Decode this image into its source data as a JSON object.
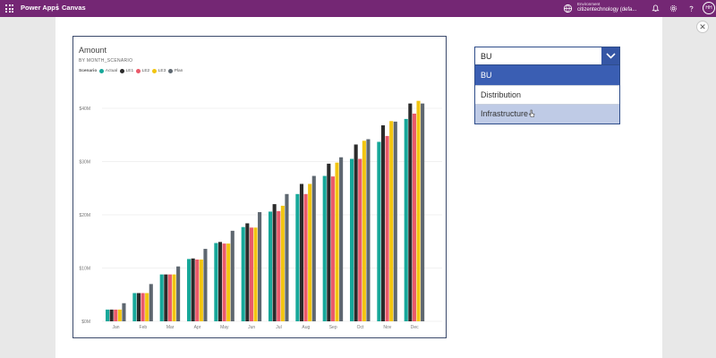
{
  "topbar": {
    "app_name": "Power Apps",
    "separator": "|",
    "mode": "Canvas",
    "environment_label": "Environment",
    "environment_value": "citizentechnology (defa...",
    "avatar_initials": "HH",
    "icons": [
      "waffle-icon",
      "environment-icon",
      "bell-icon",
      "settings-icon",
      "help-icon"
    ]
  },
  "chart_data": {
    "type": "bar",
    "title": "Amount",
    "subtitle": "BY MONTH_SCENARIO",
    "legend_title": "Scenario",
    "categories": [
      "Jan",
      "Feb",
      "Mar",
      "Apr",
      "May",
      "Jun",
      "Jul",
      "Aug",
      "Sep",
      "Oct",
      "Nov",
      "Dec"
    ],
    "series": [
      {
        "name": "Actual",
        "color": "#17a89a",
        "values": [
          2.2,
          5.3,
          8.8,
          11.7,
          14.7,
          17.7,
          20.6,
          23.9,
          27.3,
          30.5,
          33.7,
          38.0
        ]
      },
      {
        "name": "LE1",
        "color": "#2b2b2b",
        "values": [
          2.2,
          5.3,
          8.8,
          11.8,
          14.9,
          18.4,
          22.0,
          25.8,
          29.6,
          33.2,
          36.8,
          40.9
        ]
      },
      {
        "name": "LE2",
        "color": "#ea5a6a",
        "values": [
          2.2,
          5.3,
          8.8,
          11.6,
          14.6,
          17.6,
          20.7,
          23.9,
          27.2,
          30.5,
          34.8,
          39.0
        ]
      },
      {
        "name": "LE3",
        "color": "#f2c511",
        "values": [
          2.2,
          5.3,
          8.8,
          11.6,
          14.6,
          17.6,
          21.7,
          25.8,
          29.8,
          33.9,
          37.6,
          41.4
        ]
      },
      {
        "name": "Plan",
        "color": "#5e6770",
        "values": [
          3.4,
          7.0,
          10.3,
          13.6,
          17.0,
          20.5,
          23.9,
          27.3,
          30.8,
          34.2,
          37.5,
          40.9
        ]
      }
    ],
    "ylim": [
      0,
      45
    ],
    "yticks": [
      0,
      10,
      20,
      30,
      40
    ],
    "ytick_labels": [
      "$0M",
      "$10M",
      "$20M",
      "$30M",
      "$40M"
    ],
    "grid": true,
    "legend_position": "top-left"
  },
  "dropdown": {
    "selected": "BU",
    "options": [
      "BU",
      "Distribution",
      "Infrastructure"
    ],
    "highlighted_option": "Infrastructure"
  },
  "close_glyph": "✕"
}
